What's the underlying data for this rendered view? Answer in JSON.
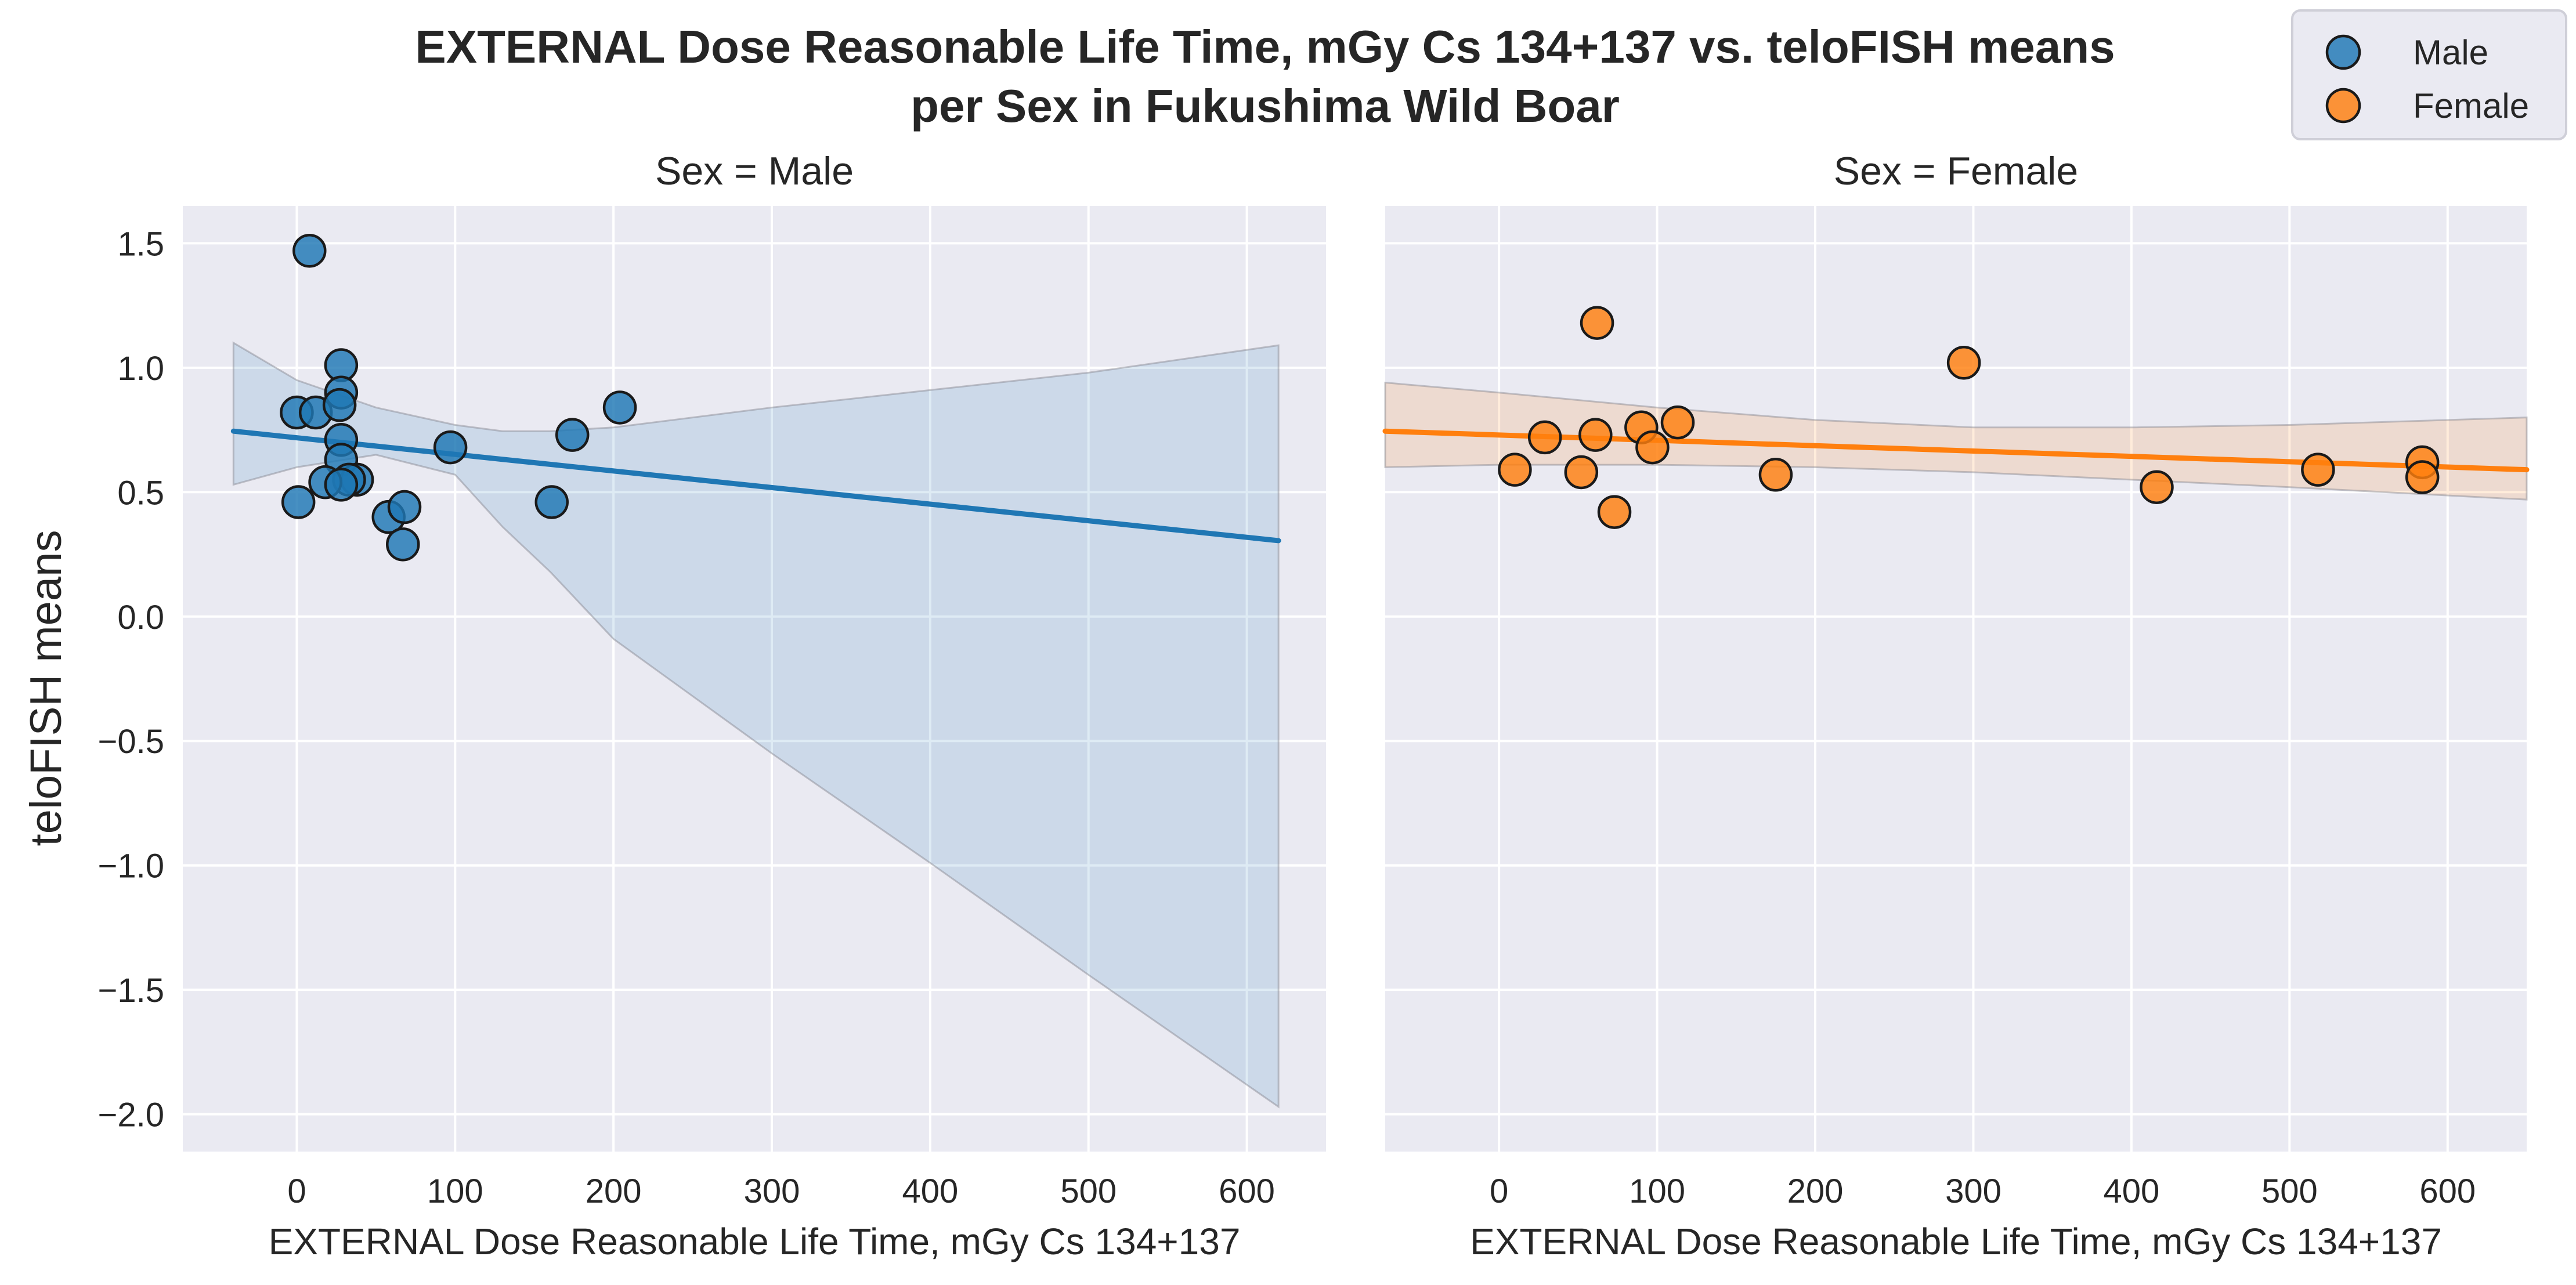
{
  "chart_data": {
    "type": "scatter",
    "title_lines": [
      "EXTERNAL Dose Reasonable Life Time, mGy Cs 134+137 vs. teloFISH means",
      "per Sex in Fukushima Wild Boar"
    ],
    "ylabel": "teloFISH means",
    "ylim": [
      -2.15,
      1.65
    ],
    "yticks": [
      1.5,
      1.0,
      0.5,
      0.0,
      -0.5,
      -1.0,
      -1.5,
      -2.0
    ],
    "ytick_labels": [
      "1.5",
      "1.0",
      "0.5",
      "0.0",
      "−0.5",
      "−1.0",
      "−1.5",
      "−2.0"
    ],
    "xticks": [
      0,
      100,
      200,
      300,
      400,
      500,
      600
    ],
    "xtick_labels": [
      "0",
      "100",
      "200",
      "300",
      "400",
      "500",
      "600"
    ],
    "grid": true,
    "legend": {
      "placement": "top-right",
      "entries": [
        {
          "label": "Male",
          "color": "#1f77b4"
        },
        {
          "label": "Female",
          "color": "#ff7f0e"
        }
      ]
    },
    "panels": [
      {
        "title": "Sex = Male",
        "xlabel": "EXTERNAL Dose Reasonable Life Time, mGy Cs 134+137",
        "xlim": [
          -72,
          650
        ],
        "color": "#1f77b4",
        "points": [
          [
            8,
            1.47
          ],
          [
            28,
            1.01
          ],
          [
            0,
            0.82
          ],
          [
            12,
            0.82
          ],
          [
            28,
            0.9
          ],
          [
            27,
            0.85
          ],
          [
            28,
            0.71
          ],
          [
            28,
            0.63
          ],
          [
            38,
            0.55
          ],
          [
            33,
            0.55
          ],
          [
            18,
            0.54
          ],
          [
            28,
            0.53
          ],
          [
            1,
            0.46
          ],
          [
            58,
            0.4
          ],
          [
            68,
            0.44
          ],
          [
            67,
            0.29
          ],
          [
            97,
            0.68
          ],
          [
            161,
            0.46
          ],
          [
            174,
            0.73
          ],
          [
            204,
            0.84
          ]
        ],
        "fit": {
          "x": [
            -40,
            620
          ],
          "y": [
            0.745,
            0.305
          ]
        },
        "ci": {
          "x": [
            -40,
            0,
            50,
            100,
            130,
            160,
            200,
            300,
            400,
            500,
            620
          ],
          "upper": [
            1.1,
            0.95,
            0.84,
            0.77,
            0.745,
            0.745,
            0.76,
            0.84,
            0.91,
            0.98,
            1.09
          ],
          "lower": [
            0.53,
            0.6,
            0.65,
            0.57,
            0.36,
            0.18,
            -0.09,
            -0.55,
            -0.99,
            -1.44,
            -1.97
          ]
        }
      },
      {
        "title": "Sex = Female",
        "xlabel": "EXTERNAL Dose Reasonable Life Time, mGy Cs 134+137",
        "xlim": [
          -72,
          650
        ],
        "color": "#ff7f0e",
        "points": [
          [
            62,
            1.18
          ],
          [
            294,
            1.02
          ],
          [
            29,
            0.72
          ],
          [
            61,
            0.73
          ],
          [
            90,
            0.76
          ],
          [
            113,
            0.78
          ],
          [
            97,
            0.68
          ],
          [
            10,
            0.59
          ],
          [
            52,
            0.58
          ],
          [
            175,
            0.57
          ],
          [
            73,
            0.42
          ],
          [
            416,
            0.52
          ],
          [
            518,
            0.59
          ],
          [
            584,
            0.62
          ],
          [
            584,
            0.56
          ]
        ],
        "fit": {
          "x": [
            -72,
            650
          ],
          "y": [
            0.745,
            0.59
          ]
        },
        "ci": {
          "x": [
            -72,
            0,
            100,
            200,
            300,
            400,
            500,
            650
          ],
          "upper": [
            0.94,
            0.9,
            0.84,
            0.79,
            0.76,
            0.76,
            0.77,
            0.8
          ],
          "lower": [
            0.6,
            0.61,
            0.61,
            0.6,
            0.58,
            0.55,
            0.52,
            0.47
          ]
        }
      }
    ]
  }
}
